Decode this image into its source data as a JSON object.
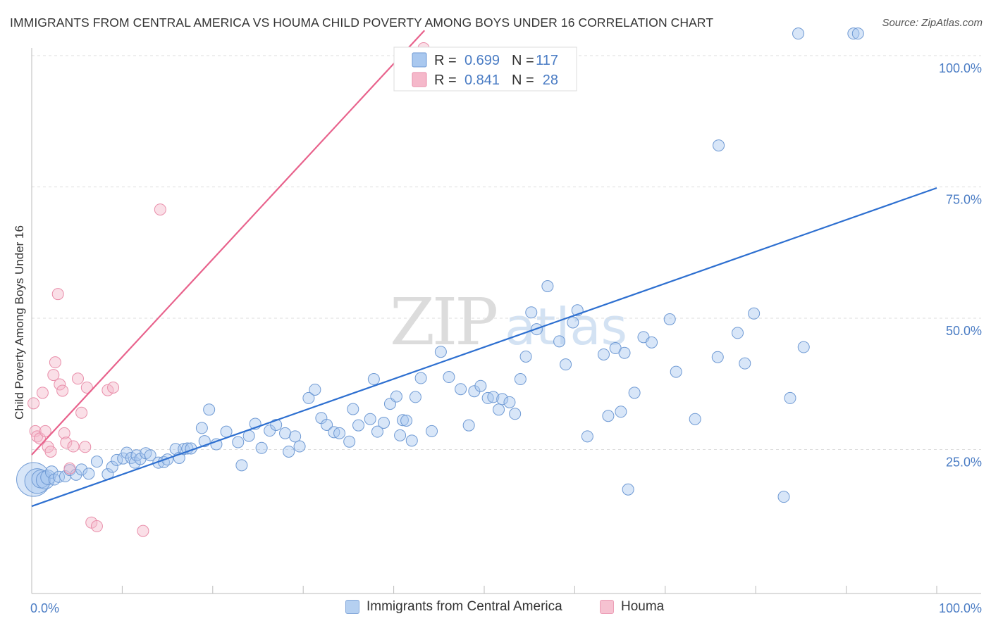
{
  "title": "IMMIGRANTS FROM CENTRAL AMERICA VS HOUMA CHILD POVERTY AMONG BOYS UNDER 16 CORRELATION CHART",
  "source": "Source: ZipAtlas.com",
  "watermark": {
    "zip": "ZIP",
    "atlas": "atlas"
  },
  "colors": {
    "blue_fill": "#a9c8ef",
    "blue_stroke": "#6f9ad4",
    "blue_line": "#2d6fd0",
    "pink_fill": "#f5b8ca",
    "pink_stroke": "#e98eaa",
    "pink_line": "#e8628c",
    "tick_text": "#4a7cc4",
    "grid": "#dddddd"
  },
  "legend": {
    "rows": [
      {
        "r_label": "R =",
        "r_value": "0.699",
        "n_label": "N =",
        "n_value": "117",
        "color": "blue"
      },
      {
        "r_label": "R =",
        "r_value": "0.841",
        "n_label": "N =",
        "n_value": "28",
        "color": "pink"
      }
    ]
  },
  "bottom_legend": [
    {
      "label": "Immigrants from Central America",
      "color": "blue"
    },
    {
      "label": "Houma",
      "color": "pink"
    }
  ],
  "chart_data": {
    "type": "scatter",
    "title": "IMMIGRANTS FROM CENTRAL AMERICA VS HOUMA CHILD POVERTY AMONG BOYS UNDER 16 CORRELATION CHART",
    "xlabel": "",
    "ylabel": "Child Poverty Among Boys Under 16",
    "xlim": [
      0,
      100
    ],
    "ylim": [
      0,
      100
    ],
    "x_tick_labels": [
      "0.0%",
      "100.0%"
    ],
    "y_ticks": [
      {
        "value": 25,
        "label": "25.0%"
      },
      {
        "value": 50,
        "label": "50.0%"
      },
      {
        "value": 75,
        "label": "75.0%"
      },
      {
        "value": 100,
        "label": "100.0%"
      }
    ],
    "grid": true,
    "series": [
      {
        "name": "Immigrants from Central America",
        "color": "blue",
        "r": 0.699,
        "n": 117,
        "trendline": {
          "x": [
            0,
            100
          ],
          "y": [
            14.2,
            74.8
          ]
        },
        "points": [
          [
            0.2,
            19.3,
            3
          ],
          [
            0.6,
            19.0,
            2.2
          ],
          [
            1.0,
            19.4,
            1.6
          ],
          [
            1.5,
            19.2,
            1.6
          ],
          [
            1.8,
            19.7,
            1.3
          ],
          [
            2.2,
            20.7,
            1.1
          ],
          [
            2.5,
            19.3,
            1
          ],
          [
            3.0,
            19.8,
            1
          ],
          [
            3.7,
            19.9,
            1
          ],
          [
            4.2,
            21.1,
            1
          ],
          [
            4.9,
            20.2,
            1
          ],
          [
            5.5,
            21.2,
            1
          ],
          [
            6.3,
            20.4,
            1
          ],
          [
            7.2,
            22.7,
            1
          ],
          [
            8.4,
            20.3,
            1
          ],
          [
            8.9,
            21.7,
            1
          ],
          [
            9.4,
            23.0,
            1
          ],
          [
            10.1,
            23.3,
            1
          ],
          [
            10.5,
            24.4,
            1
          ],
          [
            11.0,
            23.4,
            1
          ],
          [
            11.4,
            22.5,
            1
          ],
          [
            11.6,
            23.9,
            1
          ],
          [
            12.0,
            23.2,
            1
          ],
          [
            12.6,
            24.3,
            1
          ],
          [
            13.1,
            23.9,
            1
          ],
          [
            14.0,
            22.5,
            1
          ],
          [
            14.6,
            22.6,
            1
          ],
          [
            15.0,
            23.1,
            1
          ],
          [
            15.9,
            25.1,
            1
          ],
          [
            16.3,
            23.4,
            1
          ],
          [
            16.8,
            25.1,
            1
          ],
          [
            17.2,
            25.2,
            1
          ],
          [
            17.6,
            25.2,
            1
          ],
          [
            18.8,
            29.1,
            1
          ],
          [
            19.1,
            26.6,
            1
          ],
          [
            19.6,
            32.6,
            1
          ],
          [
            20.4,
            26.0,
            1
          ],
          [
            21.5,
            28.4,
            1
          ],
          [
            22.8,
            26.4,
            1
          ],
          [
            23.2,
            22.0,
            1
          ],
          [
            24.0,
            27.6,
            1
          ],
          [
            24.7,
            29.9,
            1
          ],
          [
            25.4,
            25.3,
            1
          ],
          [
            26.3,
            28.6,
            1
          ],
          [
            27.0,
            29.7,
            1
          ],
          [
            28.0,
            28.1,
            1
          ],
          [
            28.4,
            24.6,
            1
          ],
          [
            29.1,
            27.5,
            1
          ],
          [
            29.6,
            25.6,
            1
          ],
          [
            30.6,
            34.8,
            1
          ],
          [
            31.3,
            36.4,
            1
          ],
          [
            32.0,
            31.0,
            1
          ],
          [
            32.6,
            29.7,
            1
          ],
          [
            33.4,
            28.3,
            1
          ],
          [
            34.0,
            28.1,
            1
          ],
          [
            35.1,
            26.5,
            1
          ],
          [
            35.5,
            32.7,
            1
          ],
          [
            36.1,
            29.6,
            1
          ],
          [
            37.4,
            30.8,
            1
          ],
          [
            37.8,
            38.4,
            1
          ],
          [
            38.2,
            28.4,
            1
          ],
          [
            38.9,
            30.1,
            1
          ],
          [
            39.6,
            33.7,
            1
          ],
          [
            40.3,
            35.1,
            1
          ],
          [
            40.7,
            27.7,
            1
          ],
          [
            41.0,
            30.6,
            1
          ],
          [
            41.4,
            30.5,
            1
          ],
          [
            42.0,
            26.7,
            1
          ],
          [
            42.4,
            35.0,
            1
          ],
          [
            43.0,
            38.6,
            1
          ],
          [
            44.2,
            28.5,
            1
          ],
          [
            45.2,
            43.6,
            1
          ],
          [
            46.1,
            38.8,
            1
          ],
          [
            47.4,
            36.5,
            1
          ],
          [
            48.3,
            29.6,
            1
          ],
          [
            48.9,
            36.1,
            1
          ],
          [
            49.6,
            37.1,
            1
          ],
          [
            50.4,
            34.8,
            1
          ],
          [
            51.0,
            35.0,
            1
          ],
          [
            51.6,
            32.6,
            1
          ],
          [
            52.0,
            34.6,
            1
          ],
          [
            52.8,
            34.0,
            1
          ],
          [
            53.4,
            31.8,
            1
          ],
          [
            54.0,
            38.4,
            1
          ],
          [
            54.6,
            42.7,
            1
          ],
          [
            55.2,
            51.1,
            1
          ],
          [
            55.8,
            47.9,
            1
          ],
          [
            57.0,
            56.1,
            1
          ],
          [
            58.3,
            45.6,
            1
          ],
          [
            59.0,
            41.2,
            1
          ],
          [
            59.8,
            49.2,
            1
          ],
          [
            60.3,
            51.5,
            1
          ],
          [
            61.4,
            27.5,
            1
          ],
          [
            63.2,
            43.1,
            1
          ],
          [
            63.7,
            31.4,
            1
          ],
          [
            64.5,
            44.3,
            1
          ],
          [
            65.1,
            32.2,
            1
          ],
          [
            65.5,
            43.4,
            1
          ],
          [
            65.9,
            17.4,
            1
          ],
          [
            66.6,
            35.8,
            1
          ],
          [
            67.6,
            46.4,
            1
          ],
          [
            68.5,
            45.4,
            1
          ],
          [
            70.5,
            49.8,
            1
          ],
          [
            71.2,
            39.8,
            1
          ],
          [
            73.3,
            30.8,
            1
          ],
          [
            75.8,
            42.6,
            1
          ],
          [
            75.9,
            82.9,
            1
          ],
          [
            78.0,
            47.2,
            1
          ],
          [
            78.8,
            41.4,
            1
          ],
          [
            79.8,
            50.9,
            1
          ],
          [
            83.1,
            16.0,
            1
          ],
          [
            83.8,
            34.8,
            1
          ],
          [
            84.7,
            104.2,
            1
          ],
          [
            85.3,
            44.5,
            1
          ],
          [
            90.8,
            104.2,
            1
          ],
          [
            91.3,
            104.2,
            1
          ]
        ]
      },
      {
        "name": "Houma",
        "color": "pink",
        "r": 0.841,
        "n": 28,
        "trendline": {
          "x": [
            0,
            43.4
          ],
          "y": [
            24.0,
            104.8
          ]
        },
        "points": [
          [
            0.2,
            33.8,
            1
          ],
          [
            0.4,
            28.5,
            1
          ],
          [
            0.6,
            27.5,
            1
          ],
          [
            0.9,
            27.1,
            1
          ],
          [
            1.2,
            35.8,
            1
          ],
          [
            1.5,
            28.5,
            1
          ],
          [
            1.8,
            25.5,
            1
          ],
          [
            2.1,
            24.6,
            1
          ],
          [
            2.4,
            39.2,
            1
          ],
          [
            2.6,
            41.6,
            1
          ],
          [
            2.9,
            54.6,
            1
          ],
          [
            3.1,
            37.4,
            1
          ],
          [
            3.4,
            36.2,
            1
          ],
          [
            3.6,
            28.1,
            1
          ],
          [
            3.8,
            26.3,
            1
          ],
          [
            4.2,
            21.4,
            1
          ],
          [
            4.6,
            25.6,
            1
          ],
          [
            5.1,
            38.5,
            1
          ],
          [
            5.5,
            32.0,
            1
          ],
          [
            5.9,
            25.5,
            1
          ],
          [
            6.1,
            36.8,
            1
          ],
          [
            6.6,
            11.1,
            1
          ],
          [
            7.2,
            10.4,
            1
          ],
          [
            8.4,
            36.3,
            1
          ],
          [
            9.0,
            36.8,
            1
          ],
          [
            12.3,
            9.5,
            1
          ],
          [
            14.2,
            70.7,
            1
          ],
          [
            43.3,
            101.4,
            1
          ]
        ]
      }
    ]
  }
}
